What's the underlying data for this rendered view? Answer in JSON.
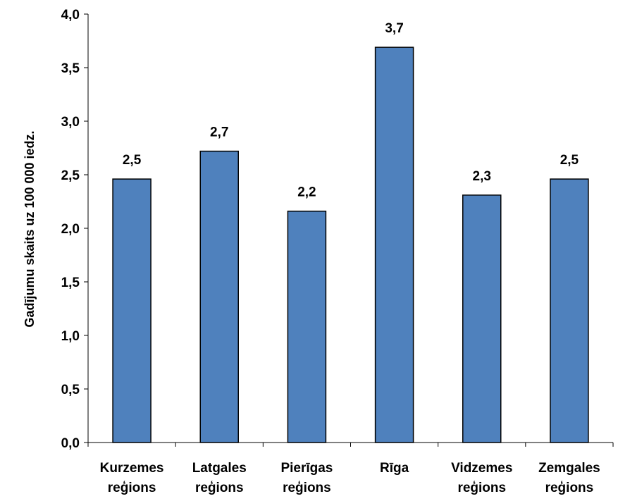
{
  "chart_data": {
    "type": "bar",
    "title": "",
    "xlabel": "",
    "ylabel": "Gadījumu skaits uz 100 000 iedz.",
    "categories": [
      [
        "Kurzemes",
        "reģions"
      ],
      [
        "Latgales",
        "reģions"
      ],
      [
        "Pierīgas",
        "reģions"
      ],
      [
        "Rīga"
      ],
      [
        "Vidzemes",
        "reģions"
      ],
      [
        "Zemgales",
        "reģions"
      ]
    ],
    "values": [
      2.46,
      2.72,
      2.16,
      3.69,
      2.31,
      2.46
    ],
    "data_labels": [
      "2,5",
      "2,7",
      "2,2",
      "3,7",
      "2,3",
      "2,5"
    ],
    "ylim": [
      0,
      4
    ],
    "yticks": [
      0,
      0.5,
      1,
      1.5,
      2,
      2.5,
      3,
      3.5,
      4
    ],
    "ytick_labels": [
      "0,0",
      "0,5",
      "1,0",
      "1,5",
      "2,0",
      "2,5",
      "3,0",
      "3,5",
      "4,0"
    ],
    "grid": false,
    "legend": "none",
    "colors": {
      "bar_fill": "#4f81bd",
      "bar_stroke": "#000000",
      "axis": "#000000"
    }
  }
}
